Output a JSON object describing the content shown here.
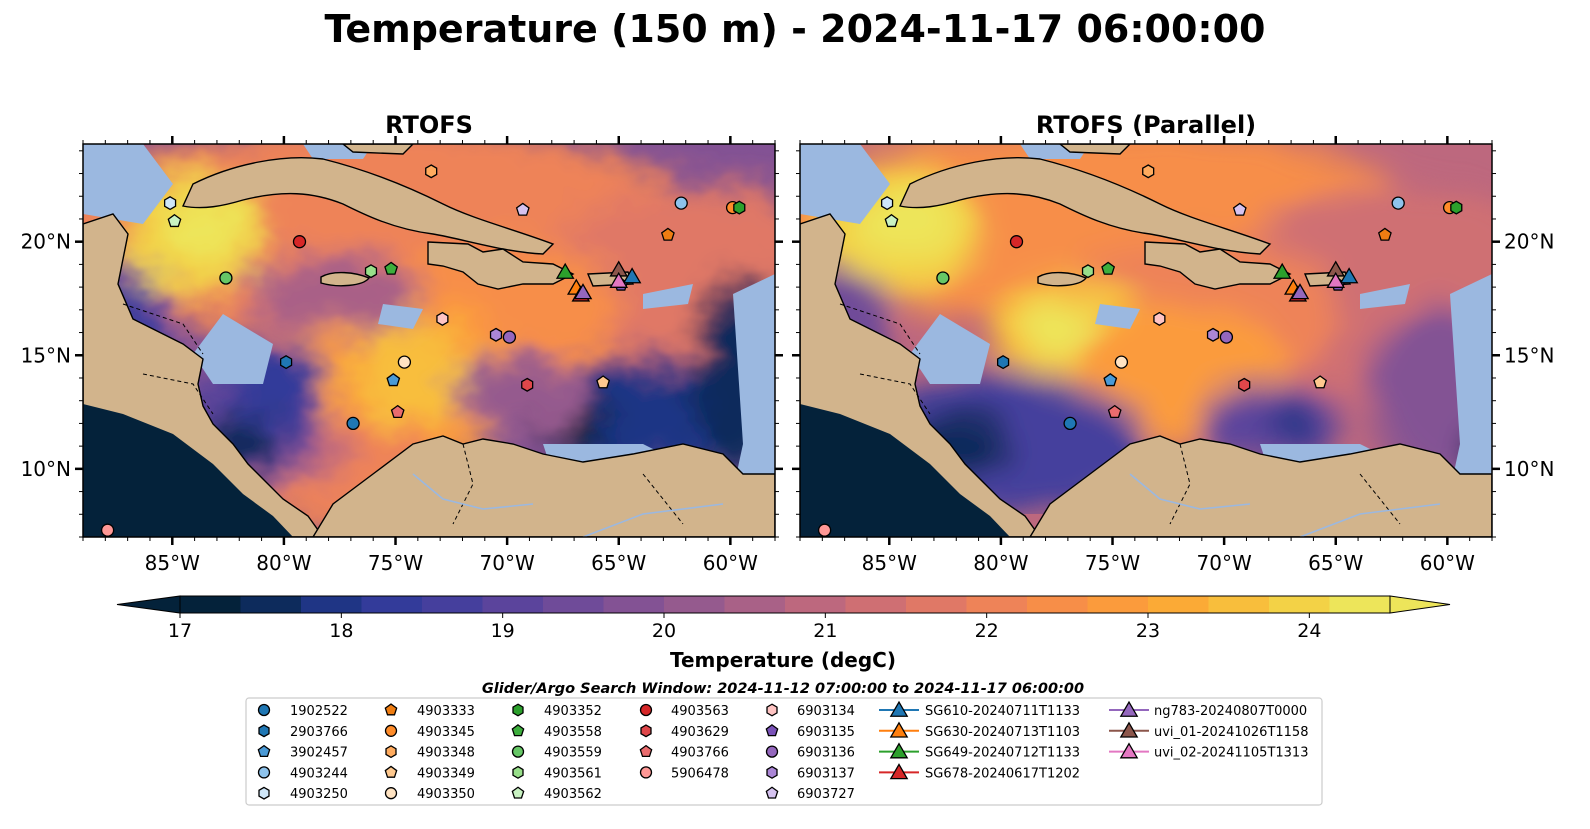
{
  "figure": {
    "title": "Temperature (150 m) - 2024-11-17 06:00:00"
  },
  "colorbar": {
    "label": "Temperature (degC)",
    "ticks": [
      "17",
      "18",
      "19",
      "20",
      "21",
      "22",
      "23",
      "24"
    ],
    "colors": [
      "#04223a",
      "#0d2b5c",
      "#1f3585",
      "#333b9a",
      "#453f9d",
      "#5b449c",
      "#6f4b99",
      "#835294",
      "#955a8e",
      "#a96187",
      "#bd687e",
      "#cf6f73",
      "#e07866",
      "#ee8358",
      "#f78e48",
      "#fb9b3c",
      "#fbaa36",
      "#f8be3c",
      "#f3d246",
      "#ede55a"
    ]
  },
  "chart_data": [
    {
      "type": "heatmap",
      "title": "RTOFS",
      "x_ticks": [
        "85°W",
        "80°W",
        "75°W",
        "70°W",
        "65°W",
        "60°W"
      ],
      "y_ticks": [
        "20°N",
        "15°N",
        "10°N"
      ],
      "xlim": [
        -89,
        -58
      ],
      "ylim": [
        7,
        24.3
      ],
      "colorbar_range": [
        17,
        24.5
      ],
      "land_color": "#d2b48c",
      "shelf_color": "#9bb8e0"
    },
    {
      "type": "heatmap",
      "title": "RTOFS (Parallel)",
      "x_ticks": [
        "85°W",
        "80°W",
        "75°W",
        "70°W",
        "65°W",
        "60°W"
      ],
      "y_ticks": [
        "20°N",
        "15°N",
        "10°N"
      ],
      "xlim": [
        -89,
        -58
      ],
      "ylim": [
        7,
        24.3
      ],
      "colorbar_range": [
        17,
        24.5
      ],
      "land_color": "#d2b48c",
      "shelf_color": "#9bb8e0"
    }
  ],
  "legend": {
    "title": "Glider/Argo Search Window: 2024-11-12 07:00:00 to 2024-11-17 06:00:00",
    "entries": [
      {
        "label": "1902522",
        "marker": "circle",
        "color": "#1f77b4"
      },
      {
        "label": "2903766",
        "marker": "hexagon",
        "color": "#1f77b4"
      },
      {
        "label": "3902457",
        "marker": "pentagon",
        "color": "#4a9ad6"
      },
      {
        "label": "4903244",
        "marker": "circle",
        "color": "#8ec3ec"
      },
      {
        "label": "4903250",
        "marker": "hexagon",
        "color": "#cfe6f8"
      },
      {
        "label": "4903333",
        "marker": "pentagon",
        "color": "#ef7d12"
      },
      {
        "label": "4903345",
        "marker": "circle",
        "color": "#ff8c2a"
      },
      {
        "label": "4903348",
        "marker": "hexagon",
        "color": "#ffab5e"
      },
      {
        "label": "4903349",
        "marker": "pentagon",
        "color": "#ffc98f"
      },
      {
        "label": "4903350",
        "marker": "circle",
        "color": "#ffe3c2"
      },
      {
        "label": "4903352",
        "marker": "hexagon",
        "color": "#2ca02c"
      },
      {
        "label": "4903558",
        "marker": "pentagon",
        "color": "#3dae3d"
      },
      {
        "label": "4903559",
        "marker": "circle",
        "color": "#66c766"
      },
      {
        "label": "4903561",
        "marker": "hexagon",
        "color": "#98df8a"
      },
      {
        "label": "4903562",
        "marker": "pentagon",
        "color": "#c9f2c2"
      },
      {
        "label": "4903563",
        "marker": "circle",
        "color": "#d62728"
      },
      {
        "label": "4903629",
        "marker": "hexagon",
        "color": "#e0474a"
      },
      {
        "label": "4903766",
        "marker": "pentagon",
        "color": "#ea6c6e"
      },
      {
        "label": "5906478",
        "marker": "circle",
        "color": "#ff9896"
      },
      {
        "label": "6903134",
        "marker": "hexagon",
        "color": "#ffc4c3"
      },
      {
        "label": "6903135",
        "marker": "pentagon",
        "color": "#7a52b8"
      },
      {
        "label": "6903136",
        "marker": "circle",
        "color": "#9467bd"
      },
      {
        "label": "6903137",
        "marker": "hexagon",
        "color": "#ab86d6"
      },
      {
        "label": "6903727",
        "marker": "pentagon",
        "color": "#d6c3f0"
      },
      {
        "label": "SG610-20240711T1133",
        "marker": "triangle",
        "color": "#1f77b4"
      },
      {
        "label": "SG630-20240713T1103",
        "marker": "triangle",
        "color": "#ff7f0e"
      },
      {
        "label": "SG649-20240712T1133",
        "marker": "triangle",
        "color": "#2ca02c"
      },
      {
        "label": "SG678-20240617T1202",
        "marker": "triangle",
        "color": "#d62728"
      },
      {
        "label": "ng783-20240807T0000",
        "marker": "triangle",
        "color": "#9467bd"
      },
      {
        "label": "uvi_01-20241026T1158",
        "marker": "triangle",
        "color": "#8c564b"
      },
      {
        "label": "uvi_02-20241105T1313",
        "marker": "triangle",
        "color": "#e377c2"
      }
    ]
  },
  "observations": [
    {
      "id": "1902522",
      "lon": -76.9,
      "lat": 12.0
    },
    {
      "id": "2903766",
      "lon": -79.9,
      "lat": 14.7
    },
    {
      "id": "3902457",
      "lon": -75.1,
      "lat": 13.9
    },
    {
      "id": "4903244",
      "lon": -62.2,
      "lat": 21.7
    },
    {
      "id": "4903250",
      "lon": -85.1,
      "lat": 21.7
    },
    {
      "id": "4903333",
      "lon": -62.8,
      "lat": 20.3
    },
    {
      "id": "4903345",
      "lon": -59.9,
      "lat": 21.5
    },
    {
      "id": "4903348",
      "lon": -73.4,
      "lat": 23.1
    },
    {
      "id": "4903349",
      "lon": -65.7,
      "lat": 13.8
    },
    {
      "id": "4903350",
      "lon": -74.6,
      "lat": 14.7
    },
    {
      "id": "4903352",
      "lon": -59.6,
      "lat": 21.5
    },
    {
      "id": "4903558",
      "lon": -75.2,
      "lat": 18.8
    },
    {
      "id": "4903559",
      "lon": -82.6,
      "lat": 18.4
    },
    {
      "id": "4903561",
      "lon": -76.1,
      "lat": 18.7
    },
    {
      "id": "4903562",
      "lon": -84.9,
      "lat": 20.9
    },
    {
      "id": "4903563",
      "lon": -79.3,
      "lat": 20.0
    },
    {
      "id": "4903629",
      "lon": -69.1,
      "lat": 13.7
    },
    {
      "id": "4903766",
      "lon": -74.9,
      "lat": 12.5
    },
    {
      "id": "5906478",
      "lon": -87.9,
      "lat": 7.3
    },
    {
      "id": "6903134",
      "lon": -72.9,
      "lat": 16.6
    },
    {
      "id": "6903135",
      "lon": -64.9,
      "lat": 18.1
    },
    {
      "id": "6903136",
      "lon": -69.9,
      "lat": 15.8
    },
    {
      "id": "6903137",
      "lon": -70.5,
      "lat": 15.9
    },
    {
      "id": "6903727",
      "lon": -69.3,
      "lat": 21.4
    },
    {
      "id": "SG610-20240711T1133",
      "lon": -64.4,
      "lat": 18.4
    },
    {
      "id": "SG630-20240713T1103",
      "lon": -66.9,
      "lat": 17.9
    },
    {
      "id": "SG649-20240712T1133",
      "lon": -67.4,
      "lat": 18.6
    },
    {
      "id": "SG678-20240617T1202",
      "lon": -66.7,
      "lat": 17.6
    },
    {
      "id": "ng783-20240807T0000",
      "lon": -66.6,
      "lat": 17.7
    },
    {
      "id": "uvi_01-20241026T1158",
      "lon": -65.0,
      "lat": 18.7
    },
    {
      "id": "uvi_02-20241105T1313",
      "lon": -65.0,
      "lat": 18.2
    }
  ]
}
